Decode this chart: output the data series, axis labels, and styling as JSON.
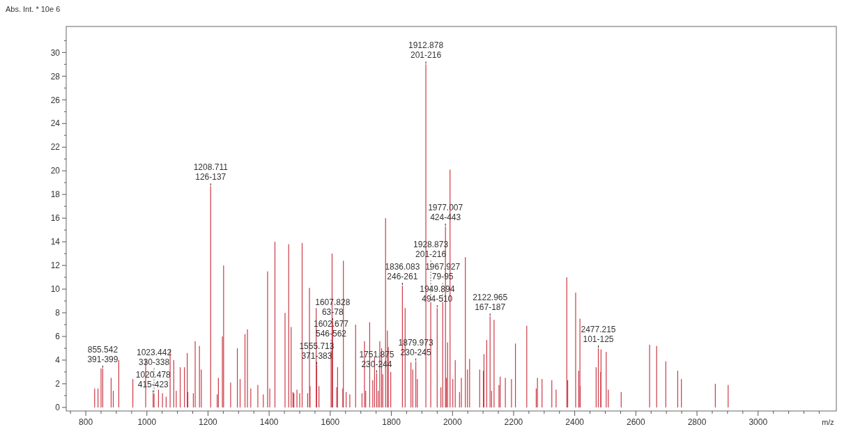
{
  "chart_data": {
    "type": "bar",
    "ylabel": "Abs. Int. * 10e 6",
    "xlabel": "m/z",
    "color": "#cc3a47",
    "x": [
      829,
      840,
      850,
      855.542,
      883,
      890,
      908,
      954,
      996,
      1020.478,
      1023.442,
      1038,
      1051,
      1063,
      1076,
      1088,
      1096,
      1109,
      1123,
      1132,
      1134,
      1152,
      1158,
      1172,
      1178,
      1208.711,
      1230,
      1234,
      1247,
      1251,
      1274,
      1296,
      1305,
      1321,
      1329,
      1340,
      1363,
      1381,
      1395,
      1402,
      1419,
      1452,
      1464,
      1472,
      1478,
      1481,
      1491,
      1500,
      1508,
      1526,
      1532,
      1534,
      1554,
      1555.713,
      1563,
      1602.677,
      1606,
      1607.828,
      1621,
      1624,
      1641,
      1643,
      1652,
      1664,
      1683,
      1704,
      1712,
      1716,
      1729,
      1739,
      1745,
      1751.875,
      1757,
      1762,
      1768,
      1772,
      1781,
      1787,
      1790,
      1798,
      1836.083,
      1845,
      1864,
      1870,
      1879.973,
      1885,
      1912.878,
      1928.873,
      1949.894,
      1962,
      1967.927,
      1977.007,
      1980,
      1984,
      1992,
      2001,
      2009,
      2023,
      2029,
      2042,
      2049,
      2056,
      2089,
      2101,
      2103,
      2112,
      2122.965,
      2128,
      2136,
      2152,
      2156,
      2173,
      2193,
      2206,
      2243,
      2274,
      2278,
      2293,
      2325,
      2339,
      2374,
      2377,
      2403,
      2413,
      2417,
      2418,
      2470,
      2477.215,
      2485,
      2486,
      2503,
      2510,
      2552,
      2645,
      2668,
      2698,
      2737,
      2749,
      2860,
      2902
    ],
    "values": [
      1.6,
      1.6,
      3.3,
      3.3,
      2.5,
      1.4,
      4.0,
      2.4,
      4.1,
      1.2,
      1.1,
      1.5,
      1.2,
      0.9,
      4.9,
      4.0,
      1.4,
      3.4,
      3.4,
      4.6,
      1.3,
      1.2,
      5.6,
      5.2,
      3.2,
      18.7,
      1.1,
      2.5,
      6.0,
      12.0,
      2.1,
      5.0,
      2.4,
      6.2,
      6.6,
      1.6,
      1.9,
      1.1,
      11.5,
      1.6,
      14.0,
      8.0,
      13.8,
      6.8,
      1.3,
      1.2,
      1.5,
      1.2,
      13.9,
      1.2,
      10.1,
      1.8,
      8.4,
      3.6,
      1.8,
      4.8,
      13.0,
      7.3,
      1.7,
      3.4,
      1.6,
      12.4,
      1.3,
      1.1,
      7.0,
      1.2,
      5.6,
      1.4,
      7.2,
      2.3,
      4.2,
      2.9,
      1.4,
      5.6,
      5.0,
      2.8,
      16.0,
      6.5,
      5.1,
      3.0,
      10.3,
      8.4,
      3.8,
      3.2,
      3.9,
      2.4,
      29.0,
      8.9,
      8.4,
      1.7,
      8.9,
      15.3,
      2.5,
      5.5,
      20.1,
      2.4,
      4.0,
      1.3,
      2.5,
      12.7,
      3.2,
      4.1,
      3.2,
      3.1,
      4.5,
      5.7,
      7.7,
      1.4,
      7.4,
      1.9,
      2.6,
      2.5,
      2.4,
      5.4,
      6.9,
      1.6,
      2.5,
      2.4,
      2.3,
      1.5,
      11.0,
      2.3,
      9.7,
      3.1,
      7.5,
      1.8,
      3.4,
      5.0,
      3.0,
      4.9,
      4.7,
      1.5,
      1.3,
      5.3,
      5.2,
      3.9,
      3.1,
      2.4,
      2.0,
      1.9
    ],
    "xlim": [
      736,
      3256
    ],
    "xticks": [
      {
        "value": 750,
        "label": null
      },
      800,
      {
        "value": 850,
        "label": null
      },
      {
        "value": 900,
        "label": null
      },
      {
        "value": 950,
        "label": null
      },
      1000,
      {
        "value": 1050,
        "label": null
      },
      {
        "value": 1100,
        "label": null
      },
      {
        "value": 1150,
        "label": null
      },
      1200,
      {
        "value": 1250,
        "label": null
      },
      {
        "value": 1300,
        "label": null
      },
      {
        "value": 1350,
        "label": null
      },
      1400,
      {
        "value": 1450,
        "label": null
      },
      {
        "value": 1500,
        "label": null
      },
      {
        "value": 1550,
        "label": null
      },
      1600,
      {
        "value": 1650,
        "label": null
      },
      {
        "value": 1700,
        "label": null
      },
      {
        "value": 1750,
        "label": null
      },
      1800,
      {
        "value": 1850,
        "label": null
      },
      {
        "value": 1900,
        "label": null
      },
      {
        "value": 1950,
        "label": null
      },
      2000,
      {
        "value": 2050,
        "label": null
      },
      {
        "value": 2100,
        "label": null
      },
      {
        "value": 2150,
        "label": null
      },
      2200,
      {
        "value": 2250,
        "label": null
      },
      {
        "value": 2300,
        "label": null
      },
      {
        "value": 2350,
        "label": null
      },
      2400,
      {
        "value": 2450,
        "label": null
      },
      {
        "value": 2500,
        "label": null
      },
      {
        "value": 2550,
        "label": null
      },
      2600,
      {
        "value": 2650,
        "label": null
      },
      {
        "value": 2700,
        "label": null
      },
      {
        "value": 2750,
        "label": null
      },
      2800,
      {
        "value": 2850,
        "label": null
      },
      {
        "value": 2900,
        "label": null
      },
      {
        "value": 2950,
        "label": null
      },
      3000,
      {
        "value": 3050,
        "label": null
      },
      {
        "value": 3100,
        "label": null
      },
      {
        "value": 3150,
        "label": null
      },
      {
        "value": 3200,
        "label": null
      }
    ],
    "ylim": [
      -0.3,
      32.2
    ],
    "yticks": [
      0,
      {
        "value": 1,
        "label": null
      },
      2,
      {
        "value": 3,
        "label": null
      },
      4,
      {
        "value": 5,
        "label": null
      },
      6,
      {
        "value": 7,
        "label": null
      },
      8,
      {
        "value": 9,
        "label": null
      },
      10,
      {
        "value": 11,
        "label": null
      },
      12,
      {
        "value": 13,
        "label": null
      },
      14,
      {
        "value": 15,
        "label": null
      },
      16,
      {
        "value": 17,
        "label": null
      },
      18,
      {
        "value": 19,
        "label": null
      },
      20,
      {
        "value": 21,
        "label": null
      },
      22,
      {
        "value": 23,
        "label": null
      },
      24,
      {
        "value": 25,
        "label": null
      },
      26,
      {
        "value": 27,
        "label": null
      },
      28,
      {
        "value": 29,
        "label": null
      },
      30,
      {
        "value": 31,
        "label": null
      }
    ],
    "annotations": [
      {
        "text": "855.542\n391-399",
        "x": 855.542,
        "y": 3.3
      },
      {
        "text": "1020.478\n415-423",
        "x": 1020.478,
        "y": 1.2
      },
      {
        "text": "1023.442\n330-338",
        "x": 1023.442,
        "y": 1.1
      },
      {
        "text": "1208.711\n126-137",
        "x": 1208.711,
        "y": 18.7
      },
      {
        "text": "1555.713\n371-383",
        "x": 1555.713,
        "y": 3.6
      },
      {
        "text": "1602.677\n546-562",
        "x": 1602.677,
        "y": 4.8
      },
      {
        "text": "1607.828\n63-78",
        "x": 1607.828,
        "y": 7.3
      },
      {
        "text": "1751.875\n230-244",
        "x": 1751.875,
        "y": 2.9
      },
      {
        "text": "1836.083\n246-261",
        "x": 1836.083,
        "y": 10.3
      },
      {
        "text": "1879.973\n230-245",
        "x": 1879.973,
        "y": 3.9
      },
      {
        "text": "1912.878\n201-216",
        "x": 1912.878,
        "y": 29.0
      },
      {
        "text": "1928.873\n201-216",
        "x": 1928.873,
        "y": 8.9
      },
      {
        "text": "1949.894\n494-510",
        "x": 1949.894,
        "y": 8.4
      },
      {
        "text": "1967.927\n79-95",
        "x": 1967.927,
        "y": 8.9
      },
      {
        "text": "1977.007\n424-443",
        "x": 1977.007,
        "y": 15.3
      },
      {
        "text": "2122.965\n167-187",
        "x": 2122.965,
        "y": 7.7
      },
      {
        "text": "2477.215\n101-125",
        "x": 2477.215,
        "y": 5.0
      }
    ]
  }
}
